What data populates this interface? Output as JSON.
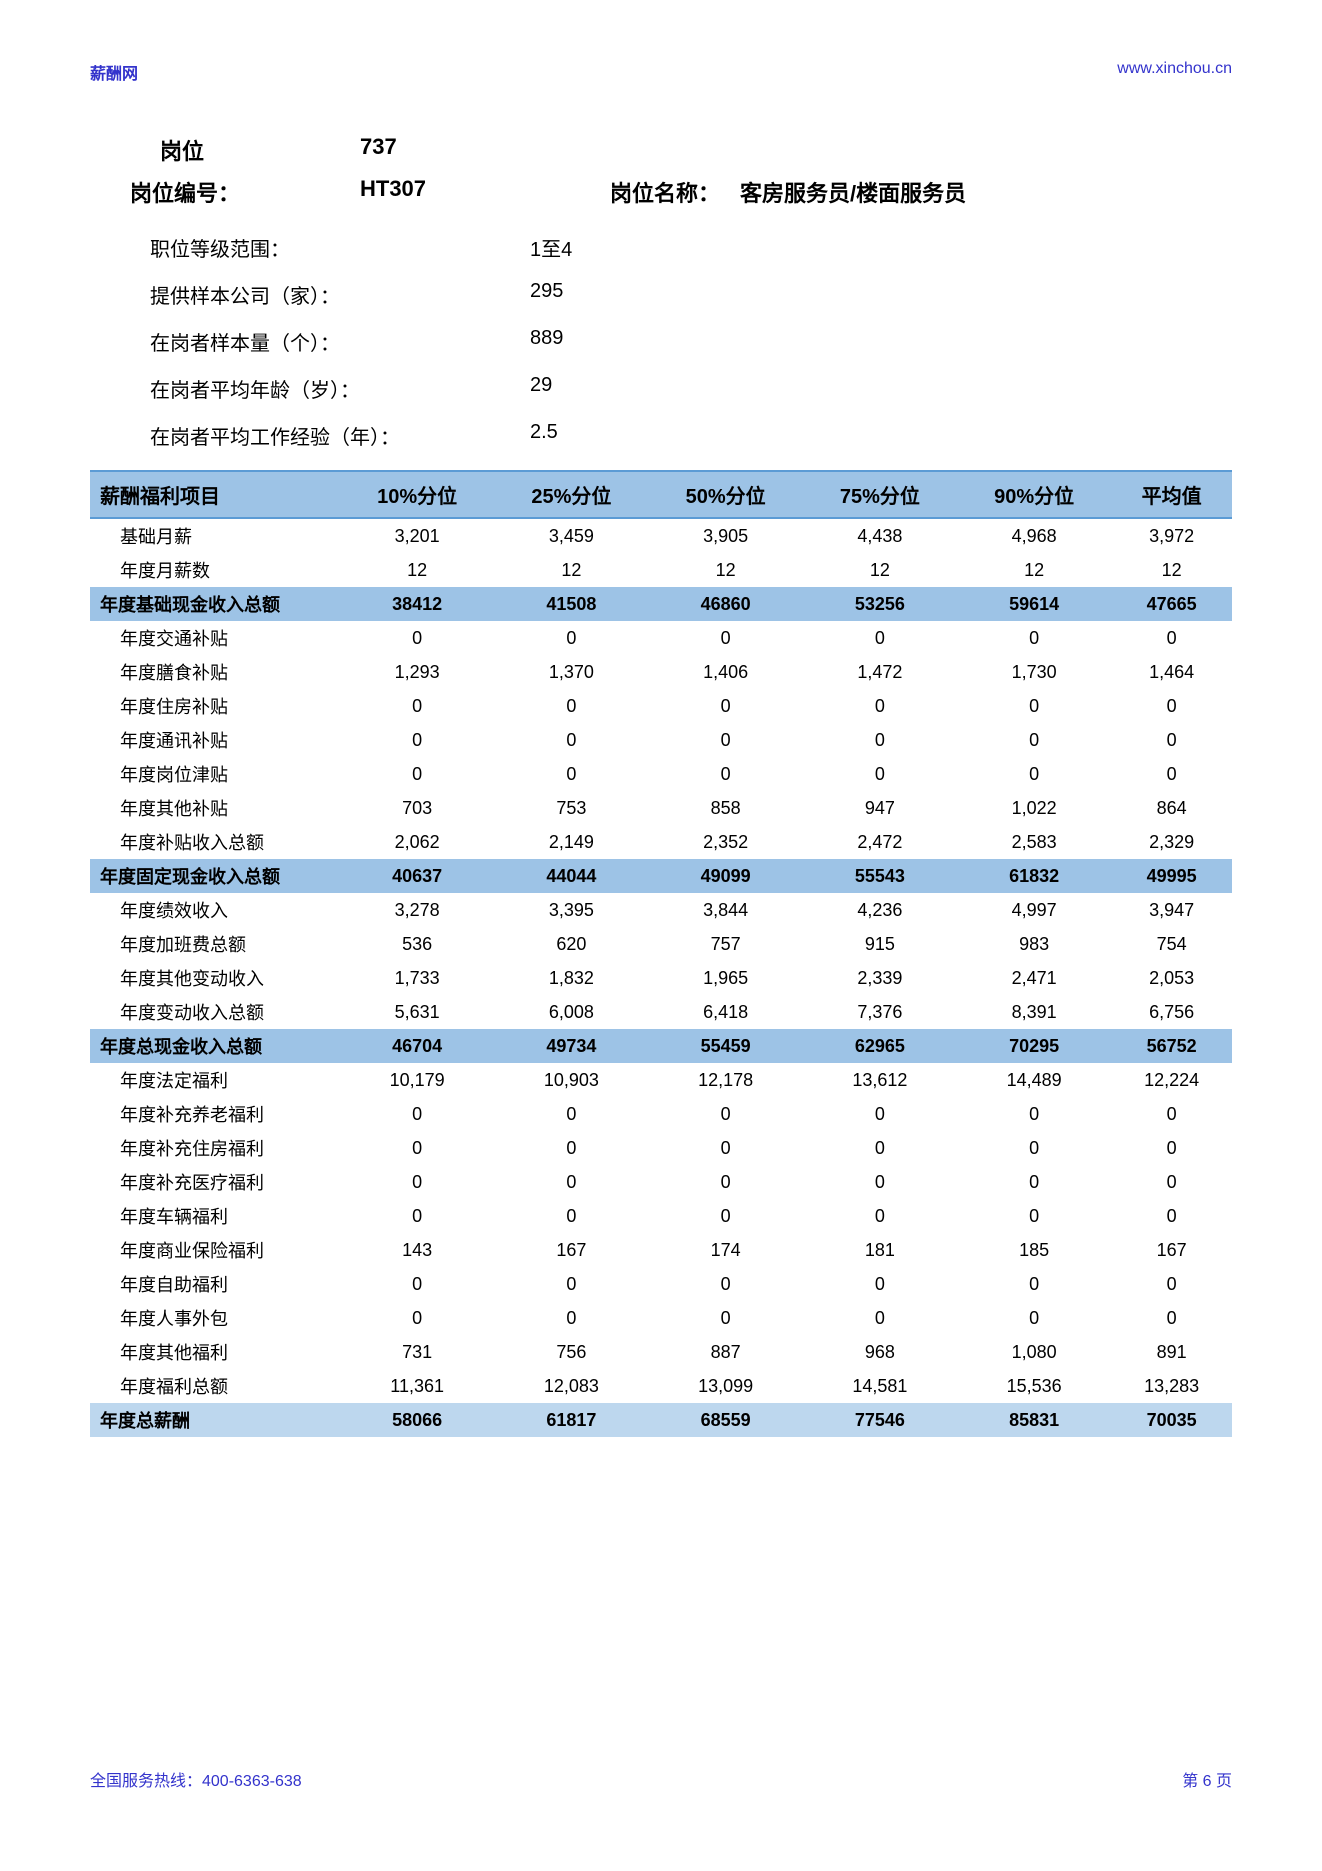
{
  "header": {
    "left": "薪酬网",
    "right": "www.xinchou.cn"
  },
  "position": {
    "label1": "岗位",
    "val1": "737",
    "label2": "岗位编号：",
    "val2": "HT307",
    "name_label": "岗位名称：",
    "name_val": "客房服务员/楼面服务员"
  },
  "info": [
    {
      "label": "职位等级范围：",
      "val": "1至4"
    },
    {
      "label": "提供样本公司（家）：",
      "val": "295"
    },
    {
      "label": "在岗者样本量（个）：",
      "val": "889"
    },
    {
      "label": "在岗者平均年龄（岁）：",
      "val": "29"
    },
    {
      "label": "在岗者平均工作经验（年）：",
      "val": "2.5"
    }
  ],
  "table": {
    "headers": [
      "薪酬福利项目",
      "10%分位",
      "25%分位",
      "50%分位",
      "75%分位",
      "90%分位",
      "平均值"
    ],
    "rows": [
      {
        "t": "n",
        "c": [
          "基础月薪",
          "3,201",
          "3,459",
          "3,905",
          "4,438",
          "4,968",
          "3,972"
        ]
      },
      {
        "t": "n",
        "c": [
          "年度月薪数",
          "12",
          "12",
          "12",
          "12",
          "12",
          "12"
        ]
      },
      {
        "t": "s",
        "c": [
          "年度基础现金收入总额",
          "38412",
          "41508",
          "46860",
          "53256",
          "59614",
          "47665"
        ]
      },
      {
        "t": "n",
        "c": [
          "年度交通补贴",
          "0",
          "0",
          "0",
          "0",
          "0",
          "0"
        ]
      },
      {
        "t": "n",
        "c": [
          "年度膳食补贴",
          "1,293",
          "1,370",
          "1,406",
          "1,472",
          "1,730",
          "1,464"
        ]
      },
      {
        "t": "n",
        "c": [
          "年度住房补贴",
          "0",
          "0",
          "0",
          "0",
          "0",
          "0"
        ]
      },
      {
        "t": "n",
        "c": [
          "年度通讯补贴",
          "0",
          "0",
          "0",
          "0",
          "0",
          "0"
        ]
      },
      {
        "t": "n",
        "c": [
          "年度岗位津贴",
          "0",
          "0",
          "0",
          "0",
          "0",
          "0"
        ]
      },
      {
        "t": "n",
        "c": [
          "年度其他补贴",
          "703",
          "753",
          "858",
          "947",
          "1,022",
          "864"
        ]
      },
      {
        "t": "n",
        "c": [
          "年度补贴收入总额",
          "2,062",
          "2,149",
          "2,352",
          "2,472",
          "2,583",
          "2,329"
        ]
      },
      {
        "t": "s",
        "c": [
          "年度固定现金收入总额",
          "40637",
          "44044",
          "49099",
          "55543",
          "61832",
          "49995"
        ]
      },
      {
        "t": "n",
        "c": [
          "年度绩效收入",
          "3,278",
          "3,395",
          "3,844",
          "4,236",
          "4,997",
          "3,947"
        ]
      },
      {
        "t": "n",
        "c": [
          "年度加班费总额",
          "536",
          "620",
          "757",
          "915",
          "983",
          "754"
        ]
      },
      {
        "t": "n",
        "c": [
          "年度其他变动收入",
          "1,733",
          "1,832",
          "1,965",
          "2,339",
          "2,471",
          "2,053"
        ]
      },
      {
        "t": "n",
        "c": [
          "年度变动收入总额",
          "5,631",
          "6,008",
          "6,418",
          "7,376",
          "8,391",
          "6,756"
        ]
      },
      {
        "t": "s",
        "c": [
          "年度总现金收入总额",
          "46704",
          "49734",
          "55459",
          "62965",
          "70295",
          "56752"
        ]
      },
      {
        "t": "n",
        "c": [
          "年度法定福利",
          "10,179",
          "10,903",
          "12,178",
          "13,612",
          "14,489",
          "12,224"
        ]
      },
      {
        "t": "n",
        "c": [
          "年度补充养老福利",
          "0",
          "0",
          "0",
          "0",
          "0",
          "0"
        ]
      },
      {
        "t": "n",
        "c": [
          "年度补充住房福利",
          "0",
          "0",
          "0",
          "0",
          "0",
          "0"
        ]
      },
      {
        "t": "n",
        "c": [
          "年度补充医疗福利",
          "0",
          "0",
          "0",
          "0",
          "0",
          "0"
        ]
      },
      {
        "t": "n",
        "c": [
          "年度车辆福利",
          "0",
          "0",
          "0",
          "0",
          "0",
          "0"
        ]
      },
      {
        "t": "n",
        "c": [
          "年度商业保险福利",
          "143",
          "167",
          "174",
          "181",
          "185",
          "167"
        ]
      },
      {
        "t": "n",
        "c": [
          "年度自助福利",
          "0",
          "0",
          "0",
          "0",
          "0",
          "0"
        ]
      },
      {
        "t": "n",
        "c": [
          "年度人事外包",
          "0",
          "0",
          "0",
          "0",
          "0",
          "0"
        ]
      },
      {
        "t": "n",
        "c": [
          "年度其他福利",
          "731",
          "756",
          "887",
          "968",
          "1,080",
          "891"
        ]
      },
      {
        "t": "n",
        "c": [
          "年度福利总额",
          "11,361",
          "12,083",
          "13,099",
          "14,581",
          "15,536",
          "13,283"
        ]
      },
      {
        "t": "t",
        "c": [
          "年度总薪酬",
          "58066",
          "61817",
          "68559",
          "77546",
          "85831",
          "70035"
        ]
      }
    ]
  },
  "footer": {
    "left": "全国服务热线：400-6363-638",
    "right": "第 6 页"
  },
  "colors": {
    "link": "#3333cc",
    "header_bg": "#9dc3e6",
    "total_bg": "#bdd7ee",
    "border": "#5b9bd5"
  }
}
